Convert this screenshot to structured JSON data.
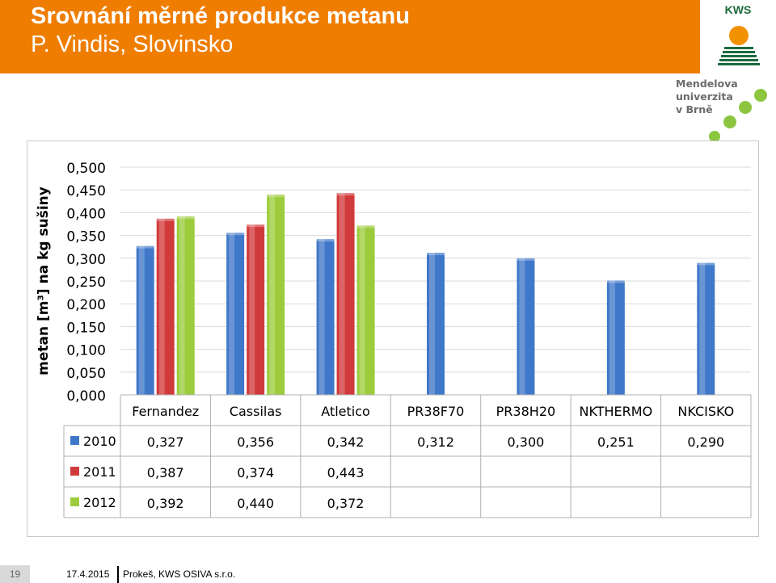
{
  "header": {
    "title_line1": "Srovnání měrné produkce metanu",
    "title_line2": "P. Vindis, Slovinsko",
    "background_color": "#ef7d00"
  },
  "logos": {
    "kws_text": "KWS",
    "university_lines": [
      "Mendelova",
      "univerzita",
      "v Brně"
    ]
  },
  "chart_data": {
    "type": "bar",
    "title": "",
    "ylabel": "metan [m³] na kg sušiny",
    "xlabel": "",
    "ylim": [
      0,
      0.5
    ],
    "ytick_values": [
      0,
      0.05,
      0.1,
      0.15,
      0.2,
      0.25,
      0.3,
      0.35,
      0.4,
      0.45,
      0.5
    ],
    "ytick_labels": [
      "0,000",
      "0,050",
      "0,100",
      "0,150",
      "0,200",
      "0,250",
      "0,300",
      "0,350",
      "0,400",
      "0,450",
      "0,500"
    ],
    "categories": [
      "Fernandez",
      "Cassilas",
      "Atletico",
      "PR38F70",
      "PR38H20",
      "NKTHERMO",
      "NKCISKO"
    ],
    "series": [
      {
        "name": "2010",
        "color": "#3f78c9",
        "values": [
          0.327,
          0.356,
          0.342,
          0.312,
          0.3,
          0.251,
          0.29
        ],
        "labels": [
          "0,327",
          "0,356",
          "0,342",
          "0,312",
          "0,300",
          "0,251",
          "0,290"
        ]
      },
      {
        "name": "2011",
        "color": "#d13a3a",
        "values": [
          0.387,
          0.374,
          0.443,
          null,
          null,
          null,
          null
        ],
        "labels": [
          "0,387",
          "0,374",
          "0,443",
          "",
          "",
          "",
          ""
        ]
      },
      {
        "name": "2012",
        "color": "#9ccc3c",
        "values": [
          0.392,
          0.44,
          0.372,
          null,
          null,
          null,
          null
        ],
        "labels": [
          "0,392",
          "0,440",
          "0,372",
          "",
          "",
          "",
          ""
        ]
      }
    ],
    "grid": true,
    "legend": "data-table"
  },
  "footer": {
    "slide_number": "19",
    "date": "17.4.2015",
    "author": "Prokeš, KWS OSIVA s.r.o."
  }
}
